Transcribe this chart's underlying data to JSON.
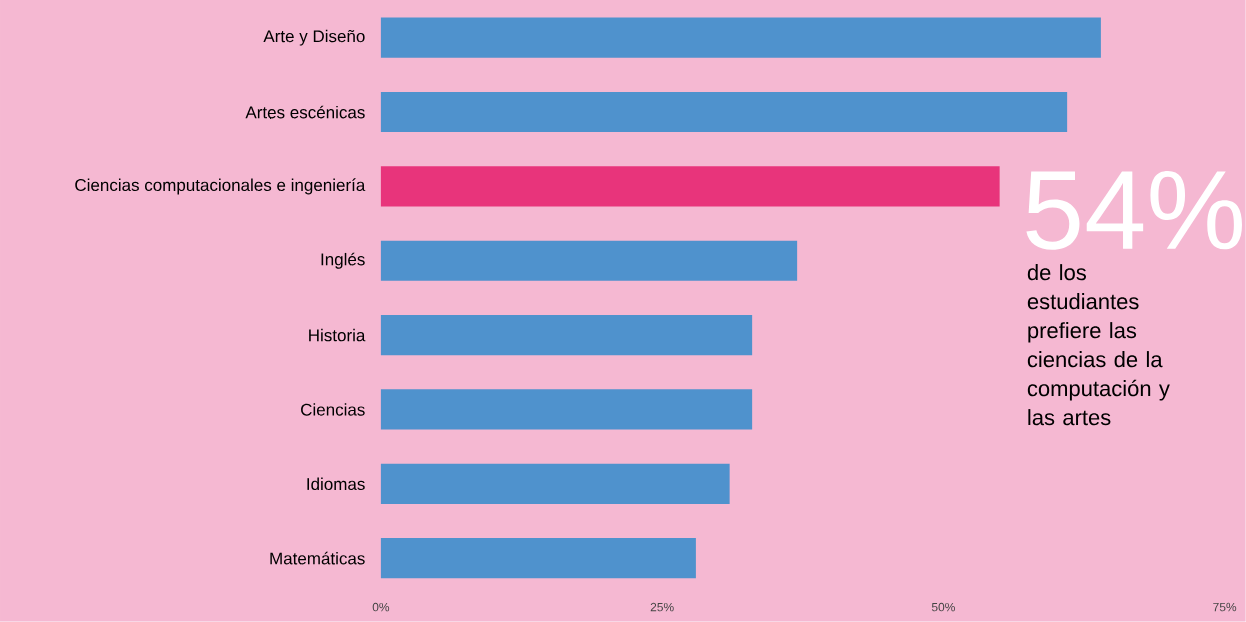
{
  "chart_data": {
    "type": "bar",
    "orientation": "horizontal",
    "categories": [
      "Arte y Diseño",
      "Artes escénicas",
      "Ciencias computacionales e ingeniería",
      "Inglés",
      "Historia",
      "Ciencias",
      "Idiomas",
      "Matemáticas"
    ],
    "values": [
      64,
      61,
      55,
      37,
      33,
      33,
      31,
      28
    ],
    "colors": [
      "#4f92cd",
      "#4f92cd",
      "#e8347b",
      "#4f92cd",
      "#4f92cd",
      "#4f92cd",
      "#4f92cd",
      "#4f92cd"
    ],
    "xlim": [
      0,
      75
    ],
    "xticks": [
      {
        "value": 0,
        "label": "0%"
      },
      {
        "value": 25,
        "label": "25%"
      },
      {
        "value": 50,
        "label": "50%"
      },
      {
        "value": 75,
        "label": "75%"
      }
    ],
    "annotations": [
      "54%",
      "de los estudiantes prefiere las ciencias de la computación y las artes"
    ]
  }
}
